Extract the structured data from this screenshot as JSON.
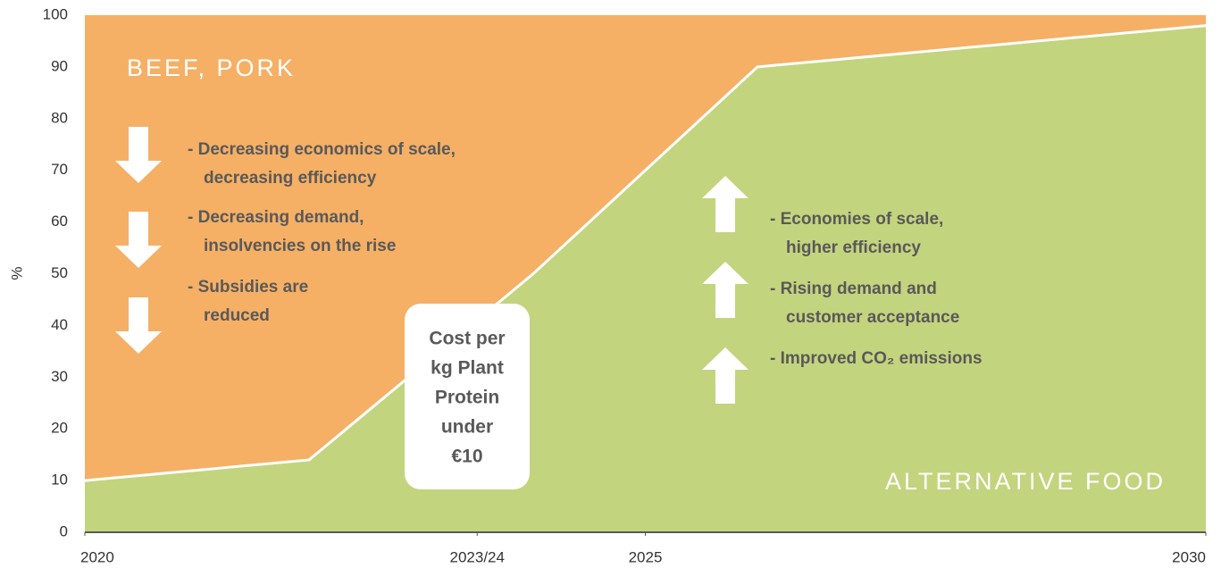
{
  "chart_data": {
    "type": "stacked_area",
    "y_label": "%",
    "x": [
      2020,
      2022,
      2024,
      2026,
      2030
    ],
    "series": [
      {
        "name": "ALTERNATIVE FOOD",
        "color": "#c3d47e",
        "values": [
          10,
          14,
          50,
          90,
          98
        ]
      },
      {
        "name": "BEEF, PORK",
        "color": "#f5b066",
        "values": [
          90,
          86,
          50,
          10,
          2
        ]
      }
    ],
    "xlim": [
      2020,
      2030
    ],
    "xticks": [
      2020,
      {
        "value": 2023.5,
        "label": "2023/24"
      },
      2025,
      2030
    ],
    "ylim": [
      0,
      100
    ],
    "yticks": [
      0,
      10,
      20,
      30,
      40,
      50,
      60,
      70,
      80,
      90,
      100
    ],
    "annotations": {
      "decline": [
        [
          "- Decreasing economics of scale,",
          "decreasing efficiency"
        ],
        [
          "- Decreasing demand,",
          "insolvencies on the rise"
        ],
        [
          "- Subsidies are",
          "reduced"
        ]
      ],
      "growth": [
        [
          "- Economies of scale,",
          "higher efficiency"
        ],
        [
          "- Rising demand and",
          "customer acceptance"
        ],
        [
          "- Improved CO₂ emissions"
        ]
      ],
      "callout": [
        "Cost per",
        "kg Plant",
        "Protein",
        "under",
        "€10"
      ]
    }
  }
}
